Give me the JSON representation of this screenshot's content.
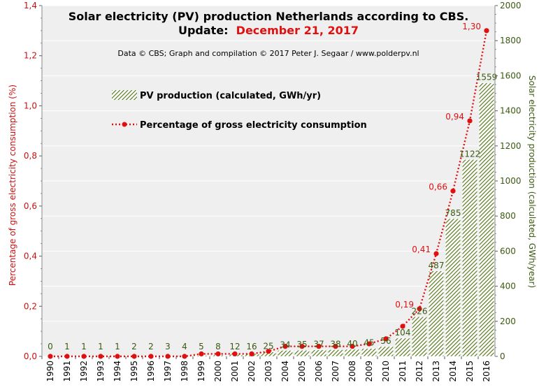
{
  "chart_data": {
    "type": "bar",
    "title_line1": "Solar electricity (PV) production Netherlands according to CBS.",
    "title_line2_prefix": "Update:",
    "title_line2_date": "December 21, 2017",
    "credit": "Data © CBS; Graph and compilation © 2017 Peter J. Segaar / www.polderpv.nl",
    "ylabel_left": "Percentage of gross electricity consumption (%)",
    "ylabel_right": "Solar electricity production (calculated, GWh/year)",
    "categories": [
      "1990",
      "1991",
      "1992",
      "1993",
      "1994",
      "1995",
      "1996",
      "1997",
      "1998",
      "1999",
      "2000",
      "2001",
      "2002",
      "2003",
      "2004",
      "2005",
      "2006",
      "2007",
      "2008",
      "2009",
      "2010",
      "2011",
      "2012",
      "2013",
      "2014",
      "2015",
      "2016"
    ],
    "series": [
      {
        "name": "PV production (calculated, GWh/yr)",
        "type": "bar",
        "axis": "right",
        "values": [
          0,
          1,
          1,
          1,
          1,
          2,
          2,
          3,
          4,
          5,
          8,
          12,
          16,
          25,
          34,
          35,
          37,
          38,
          40,
          45,
          56,
          104,
          226,
          487,
          785,
          1122,
          1559
        ],
        "labels": [
          "0",
          "1",
          "1",
          "1",
          "1",
          "2",
          "2",
          "3",
          "4",
          "5",
          "8",
          "12",
          "16",
          "25",
          "34",
          "35",
          "37",
          "38",
          "40",
          "45",
          "56",
          "104",
          "226",
          "487",
          "785",
          "1122",
          "1559"
        ]
      },
      {
        "name": "Percentage of gross electricity consumption",
        "type": "line",
        "axis": "left",
        "values": [
          0.0,
          0.0,
          0.0,
          0.0,
          0.0,
          0.0,
          0.0,
          0.0,
          0.0,
          0.01,
          0.01,
          0.01,
          0.01,
          0.02,
          0.04,
          0.04,
          0.04,
          0.04,
          0.04,
          0.05,
          0.07,
          0.12,
          0.19,
          0.41,
          0.66,
          0.94,
          1.3
        ],
        "point_labels": [
          {
            "year": "2012",
            "text": "0,19"
          },
          {
            "year": "2013",
            "text": "0,41"
          },
          {
            "year": "2014",
            "text": "0,66"
          },
          {
            "year": "2015",
            "text": "0,94"
          },
          {
            "year": "2016",
            "text": "1,30"
          }
        ]
      }
    ],
    "ylim_left": [
      0,
      1.4
    ],
    "yticks_left": [
      "0,0",
      "0,2",
      "0,4",
      "0,6",
      "0,8",
      "1,0",
      "1,2",
      "1,4"
    ],
    "ylim_right": [
      0,
      2000
    ],
    "yticks_right": [
      "0",
      "200",
      "400",
      "600",
      "800",
      "1000",
      "1200",
      "1400",
      "1600",
      "1800",
      "2000"
    ],
    "grid": true,
    "legend_placement": "top-left",
    "colors": {
      "bar_fill": "#5a7a1e",
      "bar_bg": "#ffffff",
      "line": "#e01010",
      "plot_bg": "#efefef",
      "grid": "#ffffff",
      "left_axis": "#cc1010",
      "right_axis": "#3a5a10"
    }
  }
}
